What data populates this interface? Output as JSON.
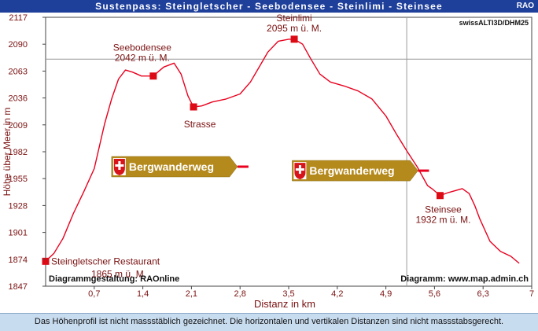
{
  "header": {
    "title": "Sustenpass: Steingletscher - Seebodensee - Steinlimi - Steinsee",
    "badge": "RAO"
  },
  "footer": {
    "note": "Das Höhenprofil ist nicht massstäblich gezeichnet. Die horizontalen und vertikalen Distanzen sind nicht massstabsgerecht."
  },
  "colors": {
    "header_bg": "#1e3f9a",
    "line": "#e8001e",
    "marker": "#dc0a14",
    "waypoint_text": "#7a1010",
    "axis_text": "#7a1010",
    "sign_bg": "#b58a1c",
    "footer_bg": "#c8dcf0"
  },
  "chart_data": {
    "type": "line",
    "xlabel": "Distanz in km",
    "ylabel": "Höhe über Meer in m",
    "xlim": [
      0,
      7.0
    ],
    "ylim": [
      1847,
      2117
    ],
    "xticks": [
      "0,7",
      "1,4",
      "2,1",
      "2,8",
      "3,5",
      "4,2",
      "4,9",
      "5,6",
      "6,3",
      "7"
    ],
    "yticks": [
      "2117",
      "2090",
      "2063",
      "2036",
      "2009",
      "1982",
      "1955",
      "1928",
      "1901",
      "1874",
      "1847"
    ],
    "source": "swissALTI3D/DHM25",
    "credit_left": "Diagrammgestaltung: RAOnline",
    "credit_right": "Diagramm: www.map.admin.ch",
    "series": [
      {
        "x": [
          0.0,
          0.12,
          0.25,
          0.4,
          0.55,
          0.7,
          0.85,
          0.95,
          1.05,
          1.15,
          1.25,
          1.38,
          1.55,
          1.7,
          1.85,
          1.95,
          2.05,
          2.13,
          2.25,
          2.4,
          2.6,
          2.8,
          2.95,
          3.1,
          3.2,
          3.35,
          3.5,
          3.58,
          3.7,
          3.82,
          3.95,
          4.1,
          4.3,
          4.5,
          4.7,
          4.9,
          5.05,
          5.2,
          5.35,
          5.5,
          5.58,
          5.68,
          5.8,
          5.9,
          6.0,
          6.1,
          6.18,
          6.25,
          6.4,
          6.55,
          6.7,
          6.82
        ],
        "y": [
          1872,
          1880,
          1895,
          1920,
          1942,
          1965,
          2010,
          2035,
          2055,
          2064,
          2062,
          2058,
          2058,
          2067,
          2071,
          2060,
          2038,
          2027,
          2028,
          2032,
          2035,
          2040,
          2052,
          2070,
          2082,
          2093,
          2095,
          2095,
          2090,
          2075,
          2060,
          2052,
          2048,
          2043,
          2035,
          2018,
          2000,
          1983,
          1967,
          1948,
          1944,
          1938,
          1941,
          1943,
          1945,
          1940,
          1928,
          1915,
          1892,
          1882,
          1877,
          1870
        ]
      }
    ],
    "waypoints": [
      {
        "name": "Steingletscher Restaurant",
        "elev": "1865 m ü. M.",
        "x": 0.0,
        "y": 1872
      },
      {
        "name": "Seebodensee",
        "elev": "2042 m ü. M.",
        "x": 1.55,
        "y": 2058
      },
      {
        "name": "Strasse",
        "elev": "",
        "x": 2.13,
        "y": 2027
      },
      {
        "name": "Steinlimi",
        "elev": "2095 m ü. M.",
        "x": 3.58,
        "y": 2095
      },
      {
        "name": "Steinsee",
        "elev": "1932 m ü. M.",
        "x": 5.68,
        "y": 1938
      }
    ],
    "reference_lines": {
      "y": 2075,
      "x": 5.2
    },
    "signs": [
      {
        "label": "Bergwanderweg",
        "x": 0.95,
        "y": 1967
      },
      {
        "label": "Bergwanderweg",
        "x": 3.55,
        "y": 1963
      }
    ]
  }
}
